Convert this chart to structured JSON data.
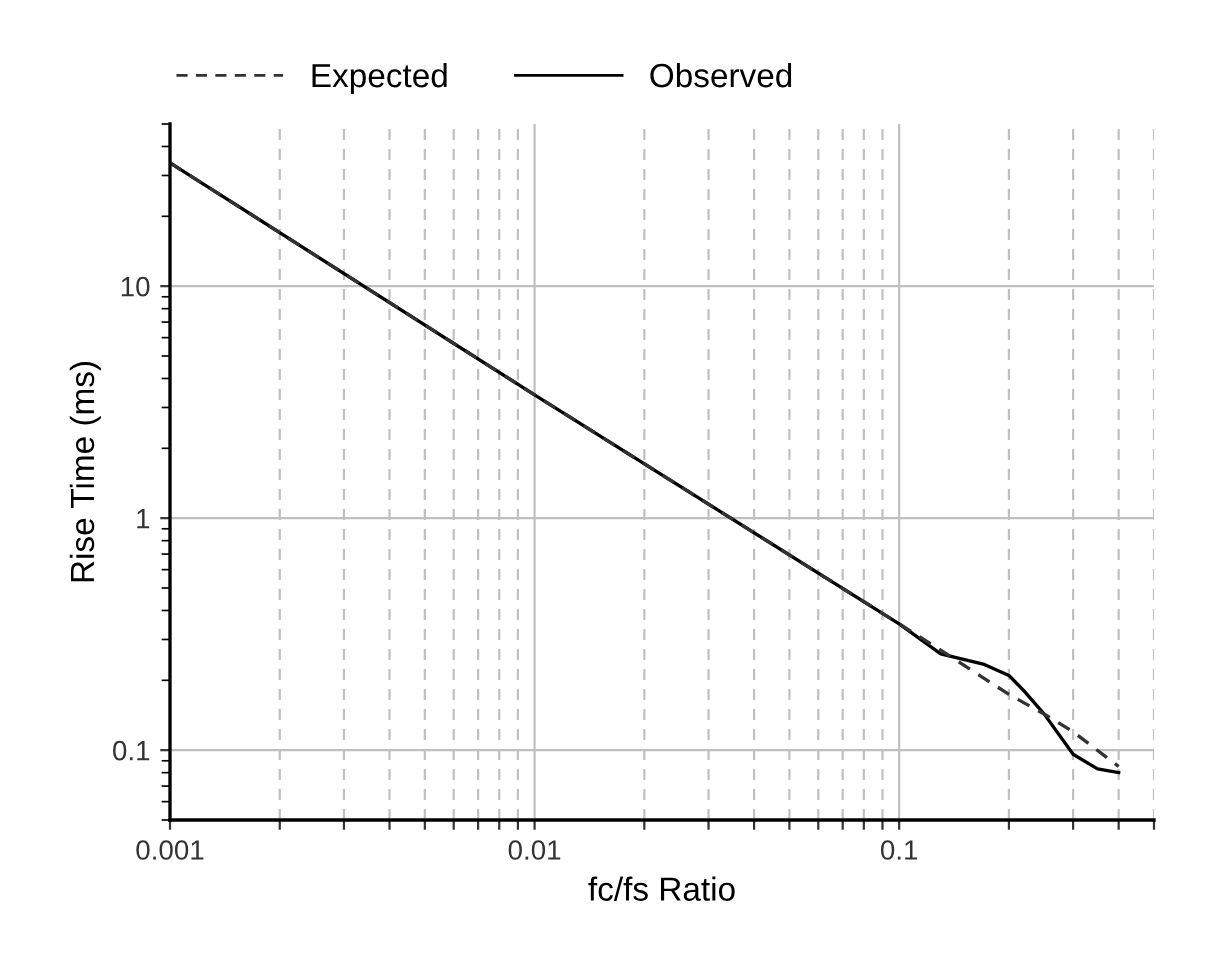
{
  "chart_data": {
    "type": "line",
    "xlabel": "fc/fs Ratio",
    "ylabel": "Rise Time (ms)",
    "log": "xy",
    "grid": true,
    "legend": "top",
    "xlim": [
      0.001,
      0.5
    ],
    "ylim": [
      0.05,
      50
    ],
    "xticks": [
      0.001,
      {
        "value": 0.002,
        "label": null
      },
      {
        "value": 0.003,
        "label": null
      },
      {
        "value": 0.004,
        "label": null
      },
      {
        "value": 0.005,
        "label": null
      },
      {
        "value": 0.006,
        "label": null
      },
      {
        "value": 0.007,
        "label": null
      },
      {
        "value": 0.008,
        "label": null
      },
      {
        "value": 0.009,
        "label": null
      },
      0.01,
      {
        "value": 0.02,
        "label": null
      },
      {
        "value": 0.03,
        "label": null
      },
      {
        "value": 0.04,
        "label": null
      },
      {
        "value": 0.05,
        "label": null
      },
      {
        "value": 0.06,
        "label": null
      },
      {
        "value": 0.07,
        "label": null
      },
      {
        "value": 0.08,
        "label": null
      },
      {
        "value": 0.09,
        "label": null
      },
      0.1,
      {
        "value": 0.2,
        "label": null
      },
      {
        "value": 0.3,
        "label": null
      },
      {
        "value": 0.4,
        "label": null
      },
      {
        "value": 0.5,
        "label": null
      }
    ],
    "yticks": [
      0.1,
      1,
      10
    ],
    "series": [
      {
        "name": "Expected",
        "color": "#333333",
        "line_style": "dashed",
        "x": [
          0.001,
          0.01,
          0.1,
          0.13,
          0.15,
          0.2,
          0.25,
          0.3,
          0.4
        ],
        "values": [
          34,
          3.4,
          0.35,
          0.27,
          0.233,
          0.174,
          0.143,
          0.12,
          0.085
        ]
      },
      {
        "name": "Observed",
        "color": "#000000",
        "line_style": "solid",
        "x": [
          0.001,
          0.01,
          0.1,
          0.13,
          0.17,
          0.2,
          0.22,
          0.25,
          0.3,
          0.35,
          0.4
        ],
        "values": [
          34,
          3.4,
          0.35,
          0.26,
          0.235,
          0.21,
          0.18,
          0.143,
          0.096,
          0.083,
          0.08
        ]
      }
    ]
  }
}
